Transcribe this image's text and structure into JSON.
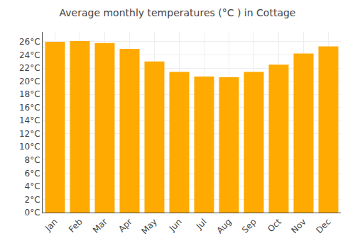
{
  "chart_data": {
    "type": "bar",
    "title": "Average monthly temperatures (°C ) in Cottage",
    "categories": [
      "Jan",
      "Feb",
      "Mar",
      "Apr",
      "May",
      "Jun",
      "Jul",
      "Aug",
      "Sep",
      "Oct",
      "Nov",
      "Dec"
    ],
    "values": [
      26.0,
      26.1,
      25.8,
      24.9,
      23.0,
      21.4,
      20.7,
      20.6,
      21.4,
      22.5,
      24.2,
      25.3
    ],
    "color": "#FFAA00",
    "ylim": [
      0,
      27.5
    ],
    "yticks": [
      {
        "value": 0,
        "label": "0°C"
      },
      {
        "value": 2,
        "label": "2°C"
      },
      {
        "value": 4,
        "label": "4°C"
      },
      {
        "value": 6,
        "label": "6°C"
      },
      {
        "value": 8,
        "label": "8°C"
      },
      {
        "value": 10,
        "label": "10°C"
      },
      {
        "value": 12,
        "label": "12°C"
      },
      {
        "value": 14,
        "label": "14°C"
      },
      {
        "value": 16,
        "label": "16°C"
      },
      {
        "value": 18,
        "label": "18°C"
      },
      {
        "value": 20,
        "label": "20°C"
      },
      {
        "value": 22,
        "label": "22°C"
      },
      {
        "value": 24,
        "label": "24°C"
      },
      {
        "value": 26,
        "label": "26°C"
      }
    ],
    "grid": true
  }
}
